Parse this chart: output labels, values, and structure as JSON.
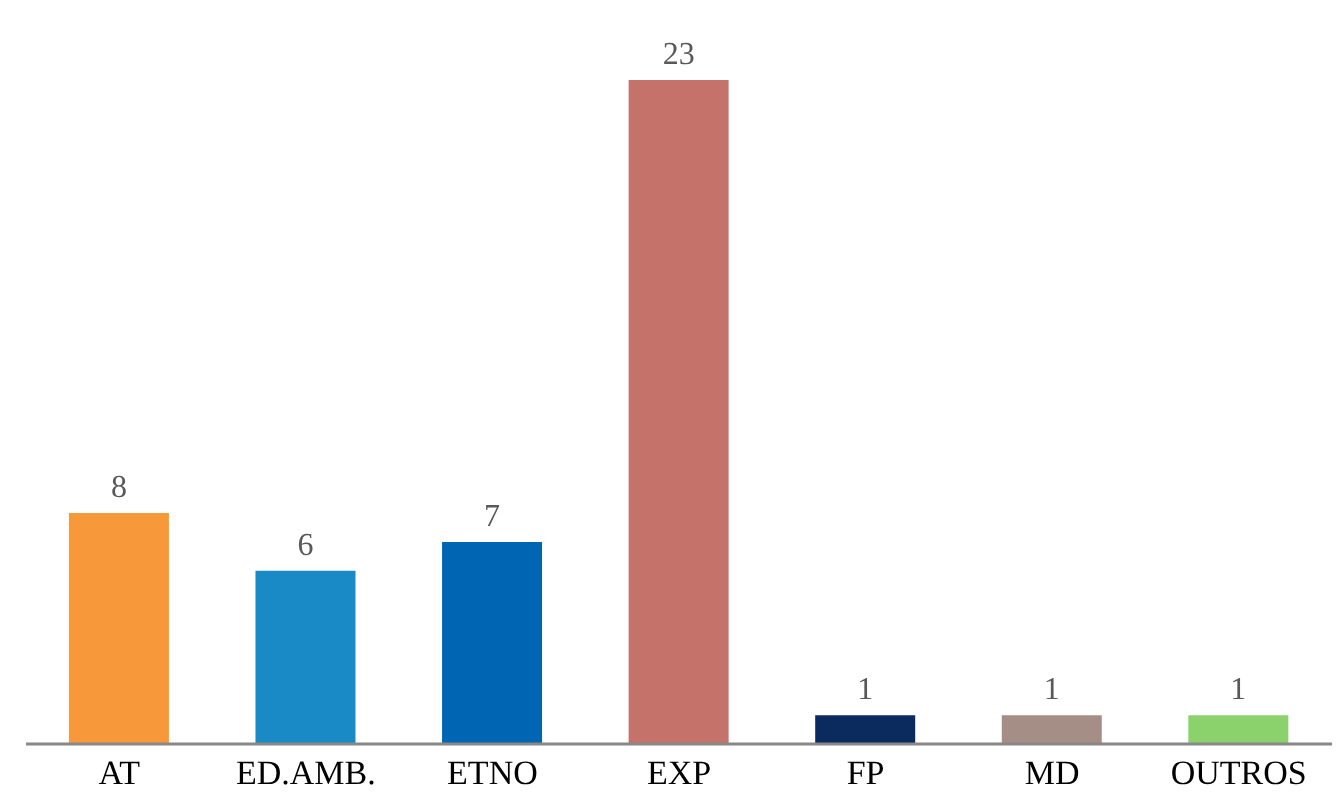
{
  "chart_data": {
    "type": "bar",
    "categories": [
      "AT",
      "ED.AMB.",
      "ETNO",
      "EXP",
      "FP",
      "MD",
      "OUTROS"
    ],
    "values": [
      8,
      6,
      7,
      23,
      1,
      1,
      1
    ],
    "colors": [
      "#f7993a",
      "#1a8ac6",
      "#0066b3",
      "#c5736a",
      "#0b2a5e",
      "#a58e86",
      "#8bd16c"
    ],
    "data_labels": true,
    "grid": false,
    "legend": false
  }
}
